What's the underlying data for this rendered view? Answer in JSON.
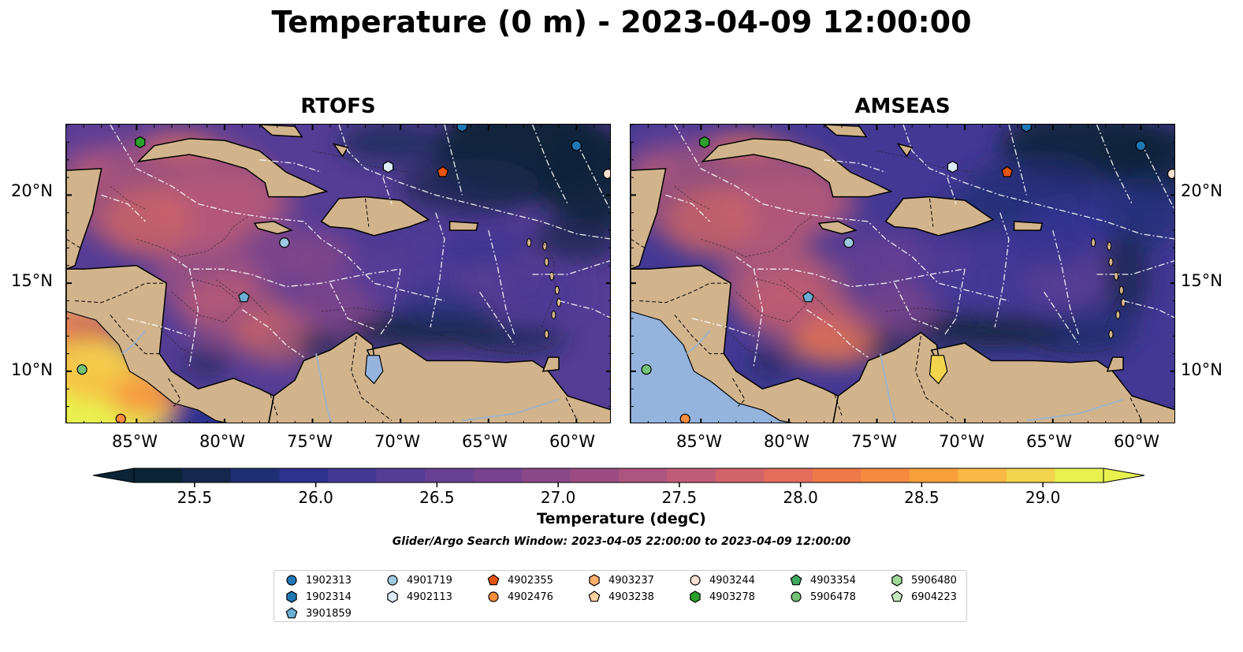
{
  "title": "Temperature (0 m) - 2023-04-09 12:00:00",
  "panels": [
    {
      "title": "RTOFS",
      "variant": "rtofs"
    },
    {
      "title": "AMSEAS",
      "variant": "amseas"
    }
  ],
  "axes": {
    "lon_ticks": [
      "85°W",
      "80°W",
      "75°W",
      "70°W",
      "65°W",
      "60°W"
    ],
    "lat_ticks": [
      "20°N",
      "15°N",
      "10°N"
    ],
    "lon_range": [
      -89,
      -58
    ],
    "lat_range": [
      7,
      24
    ]
  },
  "colorbar": {
    "ticks": [
      "25.5",
      "26.0",
      "26.5",
      "27.0",
      "27.5",
      "28.0",
      "28.5",
      "29.0"
    ],
    "tick_values": [
      25.5,
      26.0,
      26.5,
      27.0,
      27.5,
      28.0,
      28.5,
      29.0
    ],
    "range": [
      25.25,
      29.25
    ],
    "label": "Temperature (degC)",
    "colors": [
      "#0b2437",
      "#15284f",
      "#1f2f73",
      "#2d3190",
      "#433894",
      "#553c95",
      "#673f93",
      "#78428f",
      "#8a4889",
      "#9c4c83",
      "#ae5480",
      "#c15c78",
      "#d3636b",
      "#e46d5c",
      "#f0794a",
      "#f68b40",
      "#f9a03b",
      "#f9b944",
      "#f4d44d",
      "#e8f24f"
    ]
  },
  "search_window": "Glider/Argo Search Window: 2023-04-05 22:00:00 to 2023-04-09 12:00:00",
  "land_color": "#d2b48c",
  "legend": [
    {
      "id": "1902313",
      "marker": "circle",
      "color": "#1f77b4"
    },
    {
      "id": "1902314",
      "marker": "hexagon",
      "color": "#1f77b4"
    },
    {
      "id": "3901859",
      "marker": "pentagon",
      "color": "#6baed6"
    },
    {
      "id": "4901719",
      "marker": "circle",
      "color": "#9ecae1"
    },
    {
      "id": "4902113",
      "marker": "hexagon",
      "color": "#deebf7"
    },
    {
      "id": "4902355",
      "marker": "pentagon",
      "color": "#e6550d"
    },
    {
      "id": "4902476",
      "marker": "circle",
      "color": "#fd8d3c"
    },
    {
      "id": "4903237",
      "marker": "hexagon",
      "color": "#fdae6b"
    },
    {
      "id": "4903238",
      "marker": "pentagon",
      "color": "#fdd0a2"
    },
    {
      "id": "4903244",
      "marker": "circle",
      "color": "#fde0cf"
    },
    {
      "id": "4903278",
      "marker": "hexagon",
      "color": "#2ca02c"
    },
    {
      "id": "4903354",
      "marker": "pentagon",
      "color": "#41ab5d"
    },
    {
      "id": "5906478",
      "marker": "circle",
      "color": "#74c476"
    },
    {
      "id": "5906480",
      "marker": "hexagon",
      "color": "#a1d99b"
    },
    {
      "id": "6904223",
      "marker": "pentagon",
      "color": "#c7e9c0"
    }
  ],
  "floats": [
    {
      "id": "1902313",
      "lon": -60.0,
      "lat": 22.8
    },
    {
      "id": "4903278",
      "lon": -84.8,
      "lat": 23.0
    },
    {
      "id": "4902113",
      "lon": -70.7,
      "lat": 21.6
    },
    {
      "id": "4902355",
      "lon": -67.6,
      "lat": 21.3
    },
    {
      "id": "4903244",
      "lon": -58.2,
      "lat": 21.2
    },
    {
      "id": "4901719",
      "lon": -76.6,
      "lat": 17.3
    },
    {
      "id": "3901859",
      "lon": -78.9,
      "lat": 14.2
    },
    {
      "id": "5906478",
      "lon": -88.1,
      "lat": 10.1
    },
    {
      "id": "4902476",
      "lon": -85.9,
      "lat": 7.3
    },
    {
      "id": "1902314",
      "lon": -66.5,
      "lat": 23.9
    }
  ]
}
